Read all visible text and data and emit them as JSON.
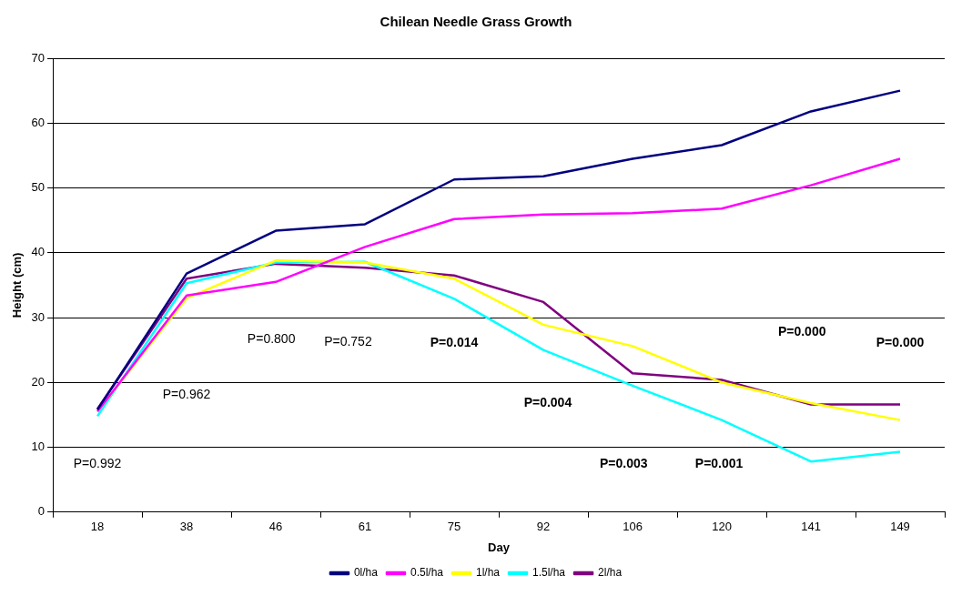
{
  "chart_data": {
    "type": "line",
    "title": "Chilean Needle Grass Growth",
    "xlabel": "Day",
    "ylabel": "Height (cm)",
    "categories": [
      "18",
      "38",
      "46",
      "61",
      "75",
      "92",
      "106",
      "120",
      "141",
      "149"
    ],
    "series": [
      {
        "name": "0l/ha",
        "color": "#000080",
        "values": [
          15.8,
          36.8,
          43.4,
          44.4,
          51.3,
          51.8,
          54.5,
          56.6,
          61.8,
          65.0
        ]
      },
      {
        "name": "0.5l/ha",
        "color": "#ff00ff",
        "values": [
          15.5,
          33.4,
          35.5,
          40.9,
          45.2,
          45.9,
          46.1,
          46.8,
          50.4,
          54.5
        ]
      },
      {
        "name": "1l/ha",
        "color": "#ffff00",
        "values": [
          15.5,
          33.0,
          38.8,
          38.5,
          36.0,
          28.9,
          25.6,
          20.0,
          16.8,
          14.2
        ]
      },
      {
        "name": "1.5l/ha",
        "color": "#00ffff",
        "values": [
          14.8,
          35.3,
          38.5,
          38.6,
          32.9,
          25.0,
          19.5,
          14.2,
          7.8,
          9.3
        ]
      },
      {
        "name": "2l/ha",
        "color": "#800080",
        "values": [
          15.9,
          36.0,
          38.3,
          37.7,
          36.5,
          32.4,
          21.4,
          20.4,
          16.6,
          16.6
        ]
      }
    ],
    "ylim": [
      0,
      70
    ],
    "yticks": [
      0,
      10,
      20,
      30,
      40,
      50,
      60,
      70
    ],
    "grid": "y",
    "legend": "bottom",
    "marker": "none",
    "line_style": "solid",
    "annotations": [
      "P=0.992",
      "P=0.962",
      "P=0.800",
      "P=0.752",
      "P=0.014",
      "P=0.004",
      "P=0.003",
      "P=0.001",
      "P=0.000",
      "P=0.000"
    ]
  }
}
